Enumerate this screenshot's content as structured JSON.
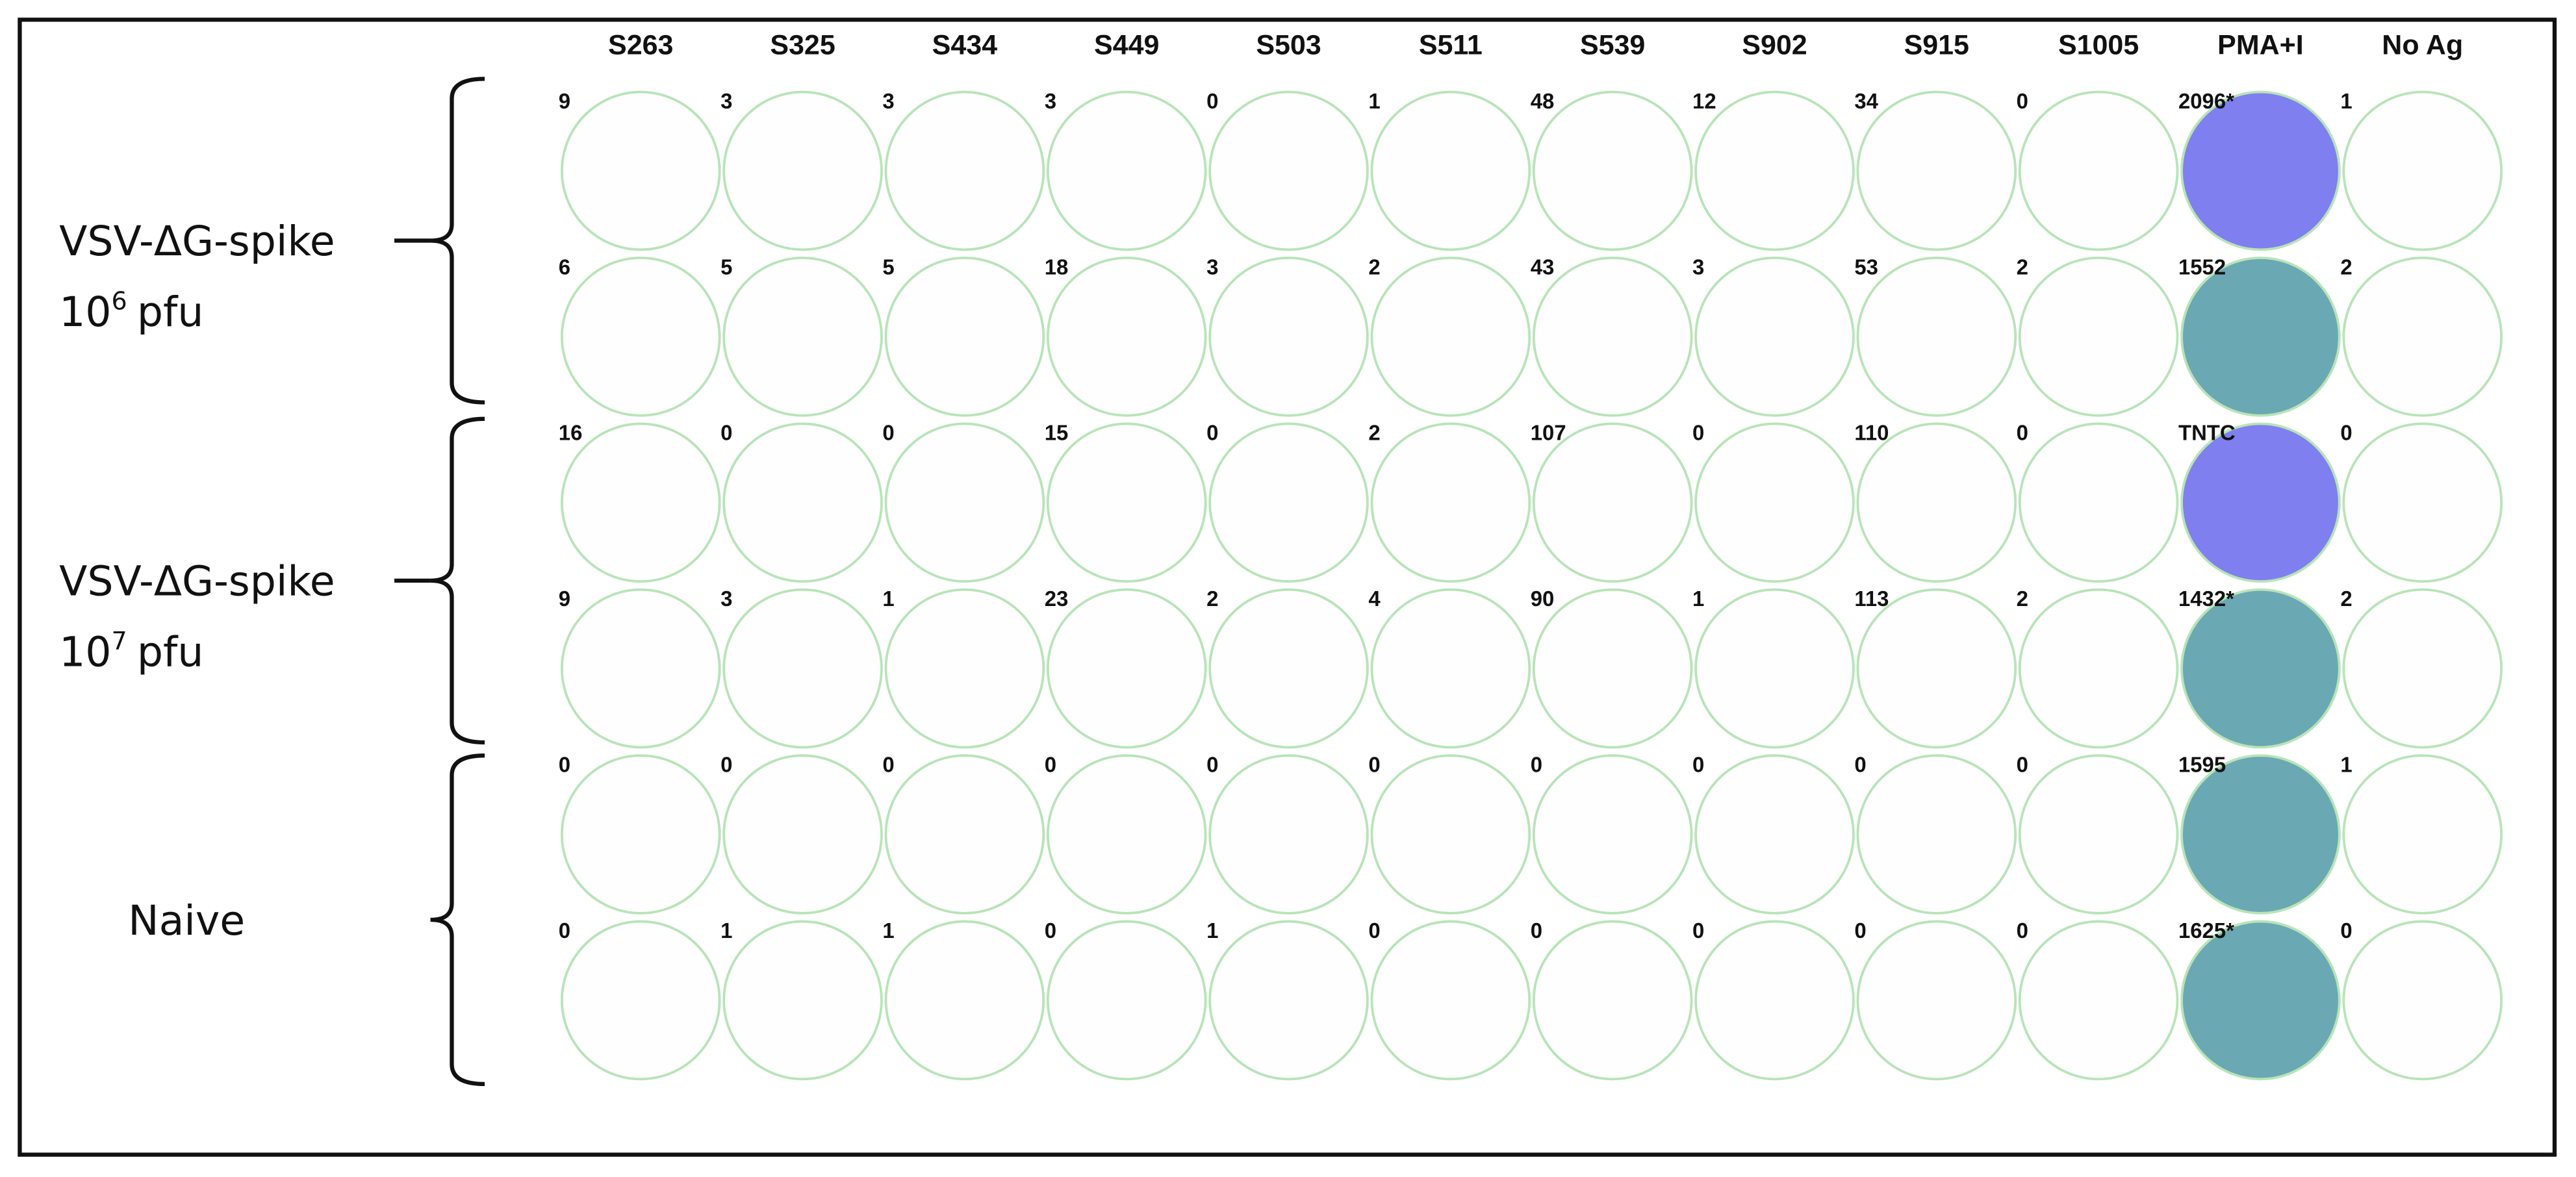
{
  "columns": [
    "S263",
    "S325",
    "S434",
    "S449",
    "S503",
    "S511",
    "S539",
    "S902",
    "S915",
    "S1005",
    "PMA+I",
    "No Ag"
  ],
  "groups": [
    {
      "label": "VSV-ΔG-spike",
      "dose": "10",
      "dose_exponent": "6",
      "dose_unit": "pfu"
    },
    {
      "label": "VSV-ΔG-spike",
      "dose": "10",
      "dose_exponent": "7",
      "dose_unit": "pfu"
    },
    {
      "label": "Naive"
    }
  ],
  "rows": [
    [
      9,
      3,
      3,
      3,
      0,
      1,
      48,
      12,
      34,
      0,
      "2096*",
      1
    ],
    [
      6,
      5,
      5,
      18,
      3,
      2,
      43,
      3,
      53,
      2,
      1552,
      2
    ],
    [
      16,
      0,
      0,
      15,
      0,
      2,
      107,
      0,
      110,
      0,
      "TNTC",
      0
    ],
    [
      9,
      3,
      1,
      23,
      2,
      4,
      90,
      1,
      113,
      2,
      "1432*",
      2
    ],
    [
      0,
      0,
      0,
      0,
      0,
      0,
      0,
      0,
      0,
      0,
      1595,
      1
    ],
    [
      0,
      1,
      1,
      0,
      1,
      0,
      0,
      0,
      0,
      0,
      "1625*",
      0
    ]
  ]
}
